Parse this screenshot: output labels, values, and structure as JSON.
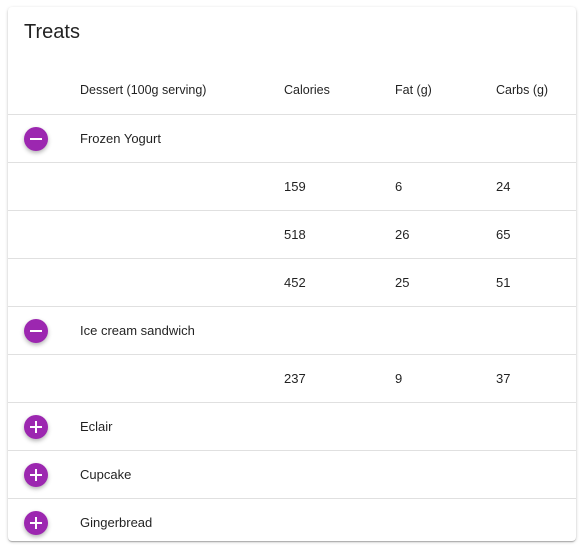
{
  "card": {
    "title": "Treats"
  },
  "table": {
    "headers": {
      "dessert": "Dessert (100g serving)",
      "calories": "Calories",
      "fat": "Fat (g)",
      "carbs": "Carbs (g)"
    },
    "rows": [
      {
        "kind": "group",
        "name": "Frozen Yogurt",
        "expanded": true
      },
      {
        "kind": "data",
        "calories": "159",
        "fat": "6",
        "carbs": "24"
      },
      {
        "kind": "data",
        "calories": "518",
        "fat": "26",
        "carbs": "65"
      },
      {
        "kind": "data",
        "calories": "452",
        "fat": "25",
        "carbs": "51"
      },
      {
        "kind": "group",
        "name": "Ice cream sandwich",
        "expanded": true
      },
      {
        "kind": "data",
        "calories": "237",
        "fat": "9",
        "carbs": "37"
      },
      {
        "kind": "group",
        "name": "Eclair",
        "expanded": false
      },
      {
        "kind": "group",
        "name": "Cupcake",
        "expanded": false
      },
      {
        "kind": "group",
        "name": "Gingerbread",
        "expanded": false
      }
    ]
  },
  "colors": {
    "accent": "#9c27b0",
    "divider": "#e0e0e0"
  },
  "icons": {
    "collapse": "minus-icon",
    "expand": "plus-icon"
  }
}
